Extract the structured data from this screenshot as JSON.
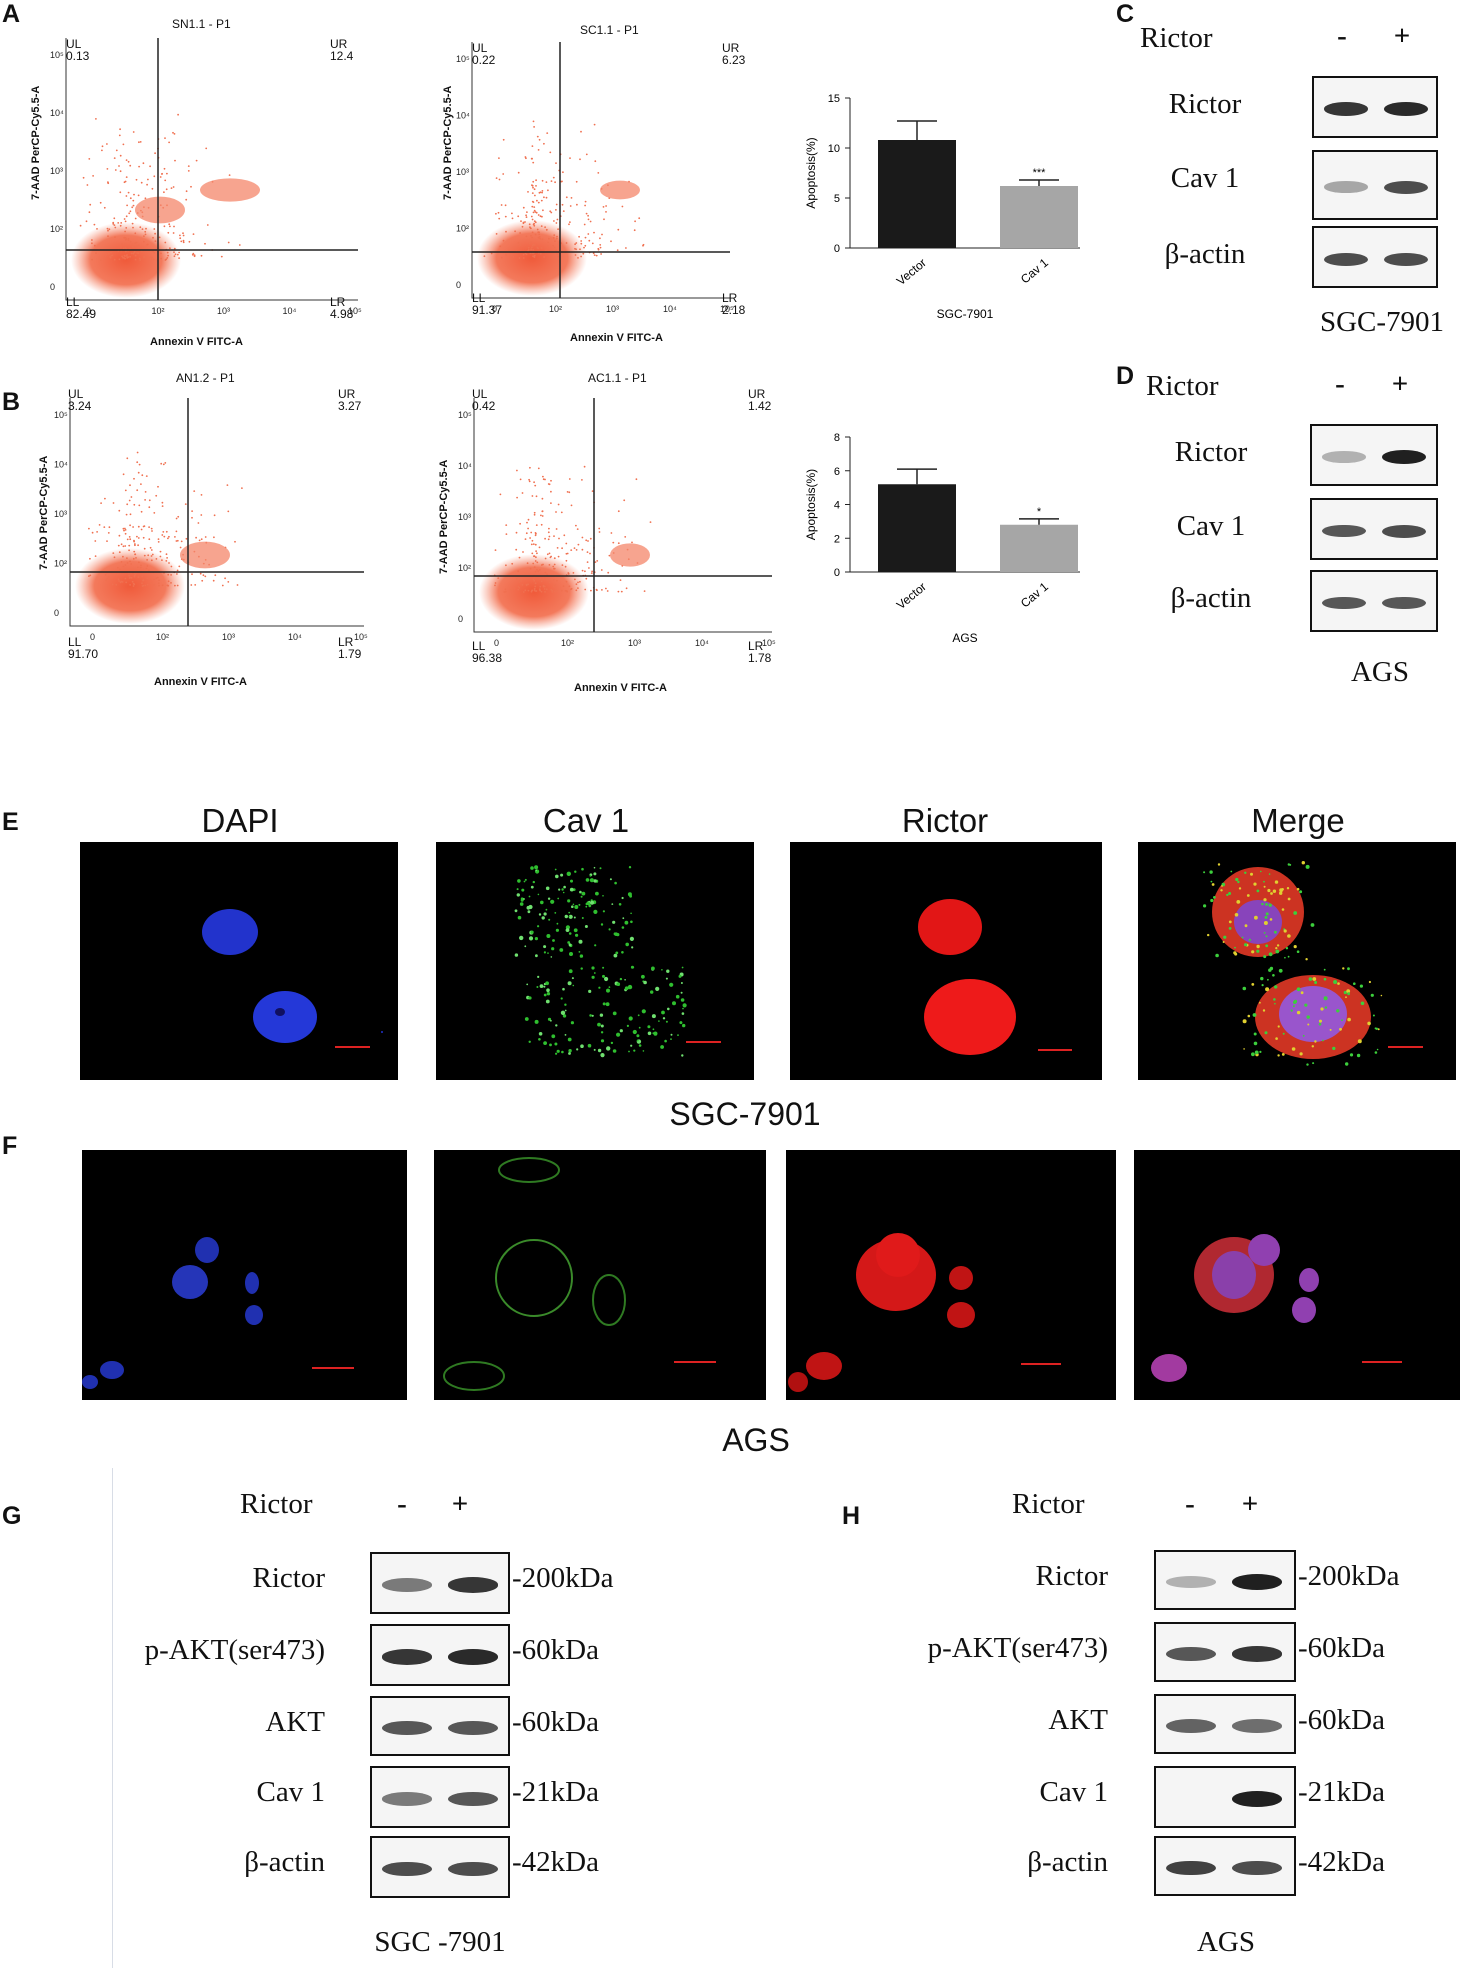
{
  "panels": {
    "A": "A",
    "B": "B",
    "C": "C",
    "D": "D",
    "E": "E",
    "F": "F",
    "G": "G",
    "H": "H"
  },
  "flow": [
    {
      "title": "SN1.1 - P1",
      "ul": "UL",
      "ul_val": "0.13",
      "ur": "UR",
      "ur_val": "12.4",
      "ll": "LL",
      "ll_val": "82.49",
      "lr": "LR",
      "lr_val": "4.98",
      "xlabel": "Annexin V FITC-A",
      "ylabel": "7-AAD PerCP-Cy5.5-A"
    },
    {
      "title": "SC1.1 - P1",
      "ul": "UL",
      "ul_val": "0.22",
      "ur": "UR",
      "ur_val": "6.23",
      "ll": "LL",
      "ll_val": "91.37",
      "lr": "LR",
      "lr_val": "2.18",
      "xlabel": "Annexin V FITC-A",
      "ylabel": "7-AAD PerCP-Cy5.5-A"
    },
    {
      "title": "AN1.2 - P1",
      "ul": "UL",
      "ul_val": "3.24",
      "ur": "UR",
      "ur_val": "3.27",
      "ll": "LL",
      "ll_val": "91.70",
      "lr": "LR",
      "lr_val": "1.79",
      "xlabel": "Annexin V FITC-A",
      "ylabel": "7-AAD PerCP-Cy5.5-A"
    },
    {
      "title": "AC1.1 - P1",
      "ul": "UL",
      "ul_val": "0.42",
      "ur": "UR",
      "ur_val": "1.42",
      "ll": "LL",
      "ll_val": "96.38",
      "lr": "LR",
      "lr_val": "1.78",
      "xlabel": "Annexin V FITC-A",
      "ylabel": "7-AAD PerCP-Cy5.5-A"
    }
  ],
  "chart_data": [
    {
      "type": "bar",
      "categories": [
        "Vector",
        "Cav 1"
      ],
      "values": [
        10.8,
        6.2
      ],
      "errors": [
        1.9,
        0.6
      ],
      "ylabel": "Apoptosis(%)",
      "xlabel": "SGC-7901",
      "ylim": [
        0,
        15
      ],
      "yticks": [
        0,
        5,
        10,
        15
      ],
      "significance": [
        "",
        "***"
      ],
      "colors": [
        "#1a1a1a",
        "#a6a6a6"
      ]
    },
    {
      "type": "bar",
      "categories": [
        "Vector",
        "Cav 1"
      ],
      "values": [
        5.2,
        2.8
      ],
      "errors": [
        0.9,
        0.35
      ],
      "ylabel": "Apoptosis(%)",
      "xlabel": "AGS",
      "ylim": [
        0,
        8
      ],
      "yticks": [
        0,
        2,
        4,
        6,
        8
      ],
      "significance": [
        "",
        "*"
      ],
      "colors": [
        "#1a1a1a",
        "#a6a6a6"
      ]
    }
  ],
  "wb_small": [
    {
      "header": "Rictor",
      "minus": "-",
      "plus": "+",
      "rows": [
        "Rictor",
        "Cav 1",
        "β-actin"
      ],
      "cell": "SGC-7901"
    },
    {
      "header": "Rictor",
      "minus": "-",
      "plus": "+",
      "rows": [
        "Rictor",
        "Cav 1",
        "β-actin"
      ],
      "cell": "AGS"
    }
  ],
  "if_titles": [
    "DAPI",
    "Cav 1",
    "Rictor",
    "Merge"
  ],
  "if_cells": [
    "SGC-7901",
    "AGS"
  ],
  "wb_large": [
    {
      "header": "Rictor",
      "minus": "-",
      "plus": "+",
      "rows": [
        "Rictor",
        "p-AKT(ser473)",
        "AKT",
        "Cav 1",
        "β-actin"
      ],
      "kda": [
        "-200kDa",
        "-60kDa",
        "-60kDa",
        "-21kDa",
        "-42kDa"
      ],
      "cell": "SGC -7901"
    },
    {
      "header": "Rictor",
      "minus": "-",
      "plus": "+",
      "rows": [
        "Rictor",
        "p-AKT(ser473)",
        "AKT",
        "Cav 1",
        "β-actin"
      ],
      "kda": [
        "-200kDa",
        "-60kDa",
        "-60kDa",
        "-21kDa",
        "-42kDa"
      ],
      "cell": "AGS"
    }
  ]
}
